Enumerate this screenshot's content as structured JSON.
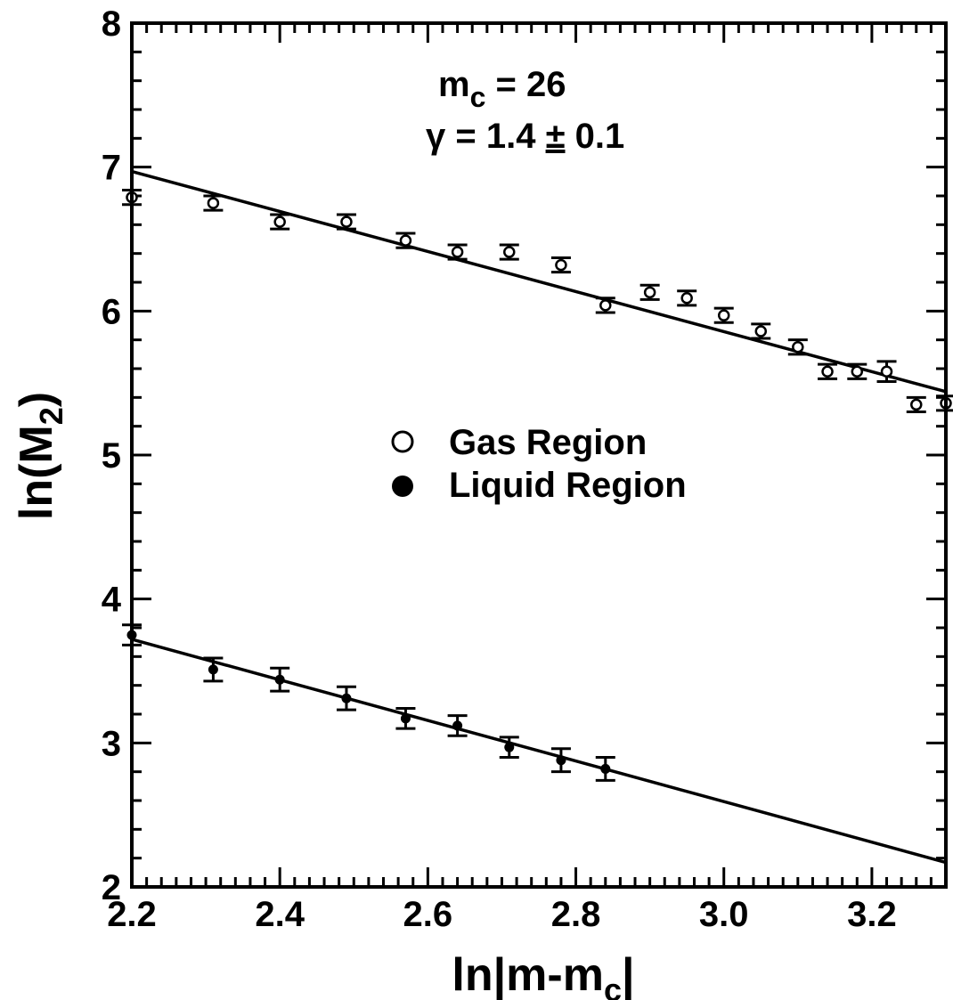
{
  "chart_data": {
    "type": "scatter",
    "xlabel": "ln|m-m",
    "xlabel_sub": "c",
    "xlabel_end": "|",
    "ylabel": "ln(M",
    "ylabel_sub": "2",
    "ylabel_end": ")",
    "xlim": [
      2.2,
      3.3
    ],
    "ylim": [
      2.0,
      8.0
    ],
    "x_ticks": [
      "2.2",
      "2.4",
      "2.6",
      "2.8",
      "3.0",
      "3.2"
    ],
    "x_tick_values": [
      2.2,
      2.4,
      2.6,
      2.8,
      3.0,
      3.2
    ],
    "y_ticks": [
      "2",
      "3",
      "4",
      "5",
      "6",
      "7",
      "8"
    ],
    "y_tick_values": [
      2,
      3,
      4,
      5,
      6,
      7,
      8
    ],
    "annotation": {
      "line1_main": "m",
      "line1_sub": "c",
      "line1_rest": " = 26",
      "line2_main": "γ = 1.4 ",
      "line2_pm": "±",
      "line2_rest": " 0.1"
    },
    "legend_position": "center",
    "series": [
      {
        "name": "Gas Region",
        "marker": "open-circle",
        "x": [
          2.2,
          2.31,
          2.4,
          2.49,
          2.57,
          2.64,
          2.71,
          2.78,
          2.84,
          2.9,
          2.95,
          3.0,
          3.05,
          3.1,
          3.14,
          3.18,
          3.22,
          3.26,
          3.3
        ],
        "y": [
          6.79,
          6.75,
          6.62,
          6.62,
          6.49,
          6.41,
          6.41,
          6.32,
          6.04,
          6.13,
          6.09,
          5.97,
          5.86,
          5.75,
          5.58,
          5.58,
          5.58,
          5.35,
          5.36
        ],
        "yerr": [
          0.05,
          0.05,
          0.05,
          0.05,
          0.05,
          0.05,
          0.05,
          0.05,
          0.05,
          0.05,
          0.05,
          0.05,
          0.05,
          0.05,
          0.05,
          0.05,
          0.07,
          0.05,
          0.05
        ],
        "fit": {
          "x": [
            2.2,
            3.3
          ],
          "y": [
            6.97,
            5.44
          ]
        }
      },
      {
        "name": "Liquid Region",
        "marker": "filled-circle",
        "x": [
          2.2,
          2.31,
          2.4,
          2.49,
          2.57,
          2.64,
          2.71,
          2.78,
          2.84
        ],
        "y": [
          3.75,
          3.51,
          3.44,
          3.31,
          3.17,
          3.12,
          2.97,
          2.88,
          2.82
        ],
        "yerr": [
          0.07,
          0.08,
          0.08,
          0.08,
          0.07,
          0.07,
          0.07,
          0.08,
          0.08
        ],
        "fit": {
          "x": [
            2.2,
            3.3
          ],
          "y": [
            3.72,
            2.17
          ]
        }
      }
    ]
  }
}
